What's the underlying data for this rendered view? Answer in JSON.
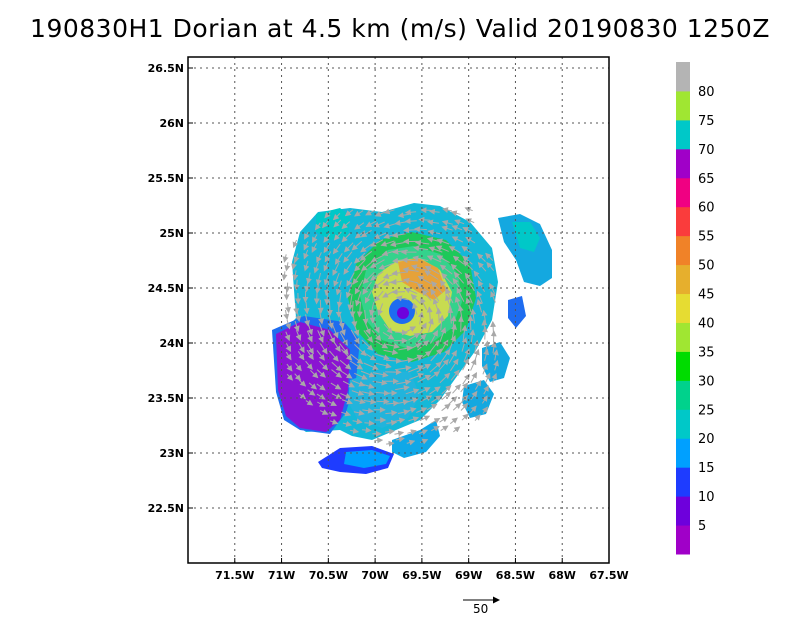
{
  "title": "190830H1 Dorian at 4.5 km (m/s) Valid 20190830  1250Z",
  "map": {
    "lon_labels": [
      "71.5W",
      "71W",
      "70.5W",
      "70W",
      "69.5W",
      "69W",
      "68.5W",
      "68W",
      "67.5W"
    ],
    "lat_labels": [
      "26.5N",
      "26N",
      "25.5N",
      "25N",
      "24.5N",
      "24N",
      "23.5N",
      "23N",
      "22.5N"
    ],
    "lon_range": [
      -72.0,
      -67.5
    ],
    "lat_range": [
      22.0,
      26.6
    ],
    "grid": true,
    "storm_center": {
      "lon": -69.73,
      "lat": 24.25
    }
  },
  "colorbar": {
    "labels": [
      "5",
      "10",
      "15",
      "20",
      "25",
      "30",
      "35",
      "40",
      "45",
      "50",
      "55",
      "60",
      "65",
      "70",
      "75",
      "80"
    ],
    "colors": [
      "#a000c8",
      "#6e00dc",
      "#1e3cff",
      "#00a0ff",
      "#00c8c8",
      "#00d28c",
      "#00dc00",
      "#a0e632",
      "#e6dc32",
      "#e6af2d",
      "#f08228",
      "#fa3c3c",
      "#f00082",
      "#a000c8",
      "#00c8c8",
      "#a0e632",
      "#b4b4b4"
    ]
  },
  "reference_vector": {
    "value": "50"
  },
  "vector_color": "#a8a8a8"
}
